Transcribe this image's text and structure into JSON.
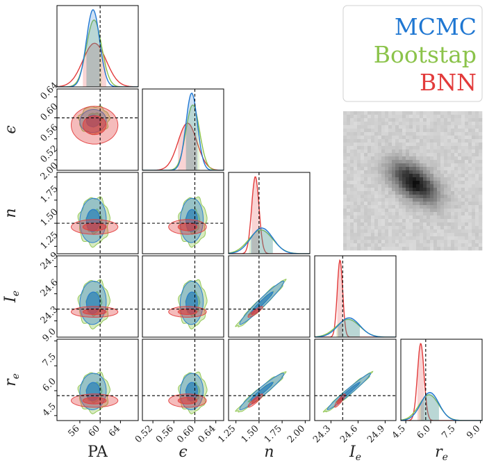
{
  "chart_data": {
    "type": "corner",
    "parameters": [
      {
        "key": "PA",
        "label": "PA",
        "truth": 60,
        "ticks": [
          56,
          60,
          64
        ],
        "tick_labels": [
          "56",
          "60",
          "64"
        ],
        "range": [
          51.5,
          67.5
        ],
        "mean": {
          "MCMC": 58.6,
          "Bootstap": 58.8,
          "BNN": 58.9
        },
        "std": {
          "MCMC": 1.3,
          "Bootstap": 1.5,
          "BNN": 2.3
        }
      },
      {
        "key": "eps",
        "label": "ϵ",
        "truth": 0.6,
        "ticks": [
          0.52,
          0.56,
          0.6,
          0.64
        ],
        "tick_labels": [
          "0.52",
          "0.56",
          "0.60",
          "0.64"
        ],
        "range": [
          0.5,
          0.655
        ],
        "mean": {
          "MCMC": 0.594,
          "Bootstap": 0.596,
          "BNN": 0.586
        },
        "std": {
          "MCMC": 0.011,
          "Bootstap": 0.013,
          "BNN": 0.018
        }
      },
      {
        "key": "n",
        "label": "n",
        "truth": 1.5,
        "ticks": [
          1.25,
          1.5,
          1.75,
          2.0
        ],
        "tick_labels": [
          "1.25",
          "1.50",
          "1.75",
          "2.00"
        ],
        "range": [
          1.17,
          2.05
        ],
        "mean": {
          "MCMC": 1.53,
          "Bootstap": 1.52,
          "BNN": 1.46
        },
        "std": {
          "MCMC": 0.12,
          "Bootstap": 0.13,
          "BNN": 0.04
        }
      },
      {
        "key": "Ie",
        "label": "I_e",
        "truth": 24.43,
        "ticks": [
          24.3,
          24.6,
          24.9
        ],
        "tick_labels": [
          "24.3",
          "24.6",
          "24.9"
        ],
        "range": [
          24.12,
          25.02
        ],
        "mean": {
          "MCMC": 24.5,
          "Bootstap": 24.49,
          "BNN": 24.4
        },
        "std": {
          "MCMC": 0.12,
          "Bootstap": 0.13,
          "BNN": 0.03
        }
      },
      {
        "key": "re",
        "label": "r_e",
        "truth": 5.7,
        "ticks": [
          4.5,
          6.0,
          7.5,
          9.0
        ],
        "tick_labels": [
          "4.5",
          "6.0",
          "7.5",
          "9.0"
        ],
        "range": [
          4.2,
          9.1
        ],
        "mean": {
          "MCMC": 5.95,
          "Bootstap": 5.9,
          "BNN": 5.4
        },
        "std": {
          "MCMC": 0.55,
          "Bootstap": 0.6,
          "BNN": 0.2
        }
      }
    ],
    "series": [
      {
        "name": "MCMC",
        "color": "#1f77d2"
      },
      {
        "name": "Bootstap",
        "color": "#8bc34a"
      },
      {
        "name": "BNN",
        "color": "#e23b3b"
      }
    ],
    "legend_position": "top-right",
    "inset": "galaxy image (grayscale cutout)",
    "truth_line_style": "dashed black"
  }
}
